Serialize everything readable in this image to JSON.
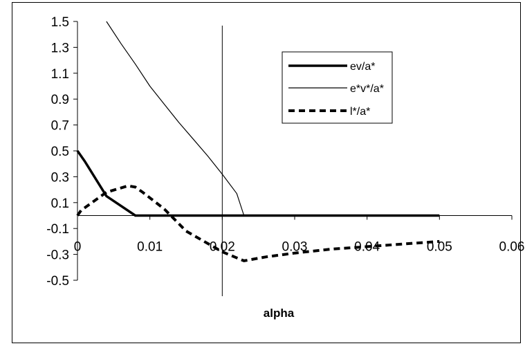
{
  "chart_data": {
    "type": "line",
    "xlabel": "alpha",
    "ylabel": "",
    "xlim": [
      0,
      0.06
    ],
    "ylim": [
      -0.5,
      1.5
    ],
    "x_ticks": [
      "0",
      "0.01",
      "0.02",
      "0.03",
      "0.04",
      "0.05",
      "0.06"
    ],
    "y_ticks": [
      "1.5",
      "1.3",
      "1.1",
      "0.9",
      "0.7",
      "0.5",
      "0.3",
      "0.1",
      "-0.1",
      "-0.3",
      "-0.5"
    ],
    "x_tick_values": [
      0,
      0.01,
      0.02,
      0.03,
      0.04,
      0.05,
      0.06
    ],
    "y_tick_values": [
      1.5,
      1.3,
      1.1,
      0.9,
      0.7,
      0.5,
      0.3,
      0.1,
      -0.1,
      -0.3,
      -0.5
    ],
    "grid": false,
    "legend_position": "top-right",
    "vertical_line_x": 0.02,
    "series": [
      {
        "name": "ev/a*",
        "style": "thick-solid",
        "color": "#000000",
        "x": [
          0,
          0.001,
          0.004,
          0.008,
          0.01,
          0.02,
          0.03,
          0.04,
          0.05
        ],
        "y": [
          0.5,
          0.42,
          0.15,
          0.0,
          0.0,
          0.0,
          0.0,
          0.0,
          0.0
        ]
      },
      {
        "name": "e*v*/a*",
        "style": "thin-solid",
        "color": "#000000",
        "x": [
          0.004,
          0.006,
          0.008,
          0.01,
          0.012,
          0.014,
          0.016,
          0.018,
          0.02,
          0.022,
          0.023
        ],
        "y": [
          1.5,
          1.33,
          1.17,
          1.0,
          0.86,
          0.72,
          0.59,
          0.46,
          0.32,
          0.17,
          0.0
        ]
      },
      {
        "name": "l*/a*",
        "style": "thick-dashed",
        "color": "#000000",
        "x": [
          0,
          0.0005,
          0.004,
          0.007,
          0.008,
          0.009,
          0.012,
          0.015,
          0.02,
          0.023,
          0.026,
          0.03,
          0.035,
          0.04,
          0.045,
          0.05
        ],
        "y": [
          0.0,
          0.04,
          0.18,
          0.23,
          0.22,
          0.18,
          0.05,
          -0.12,
          -0.28,
          -0.35,
          -0.32,
          -0.29,
          -0.26,
          -0.24,
          -0.22,
          -0.2
        ]
      }
    ]
  }
}
